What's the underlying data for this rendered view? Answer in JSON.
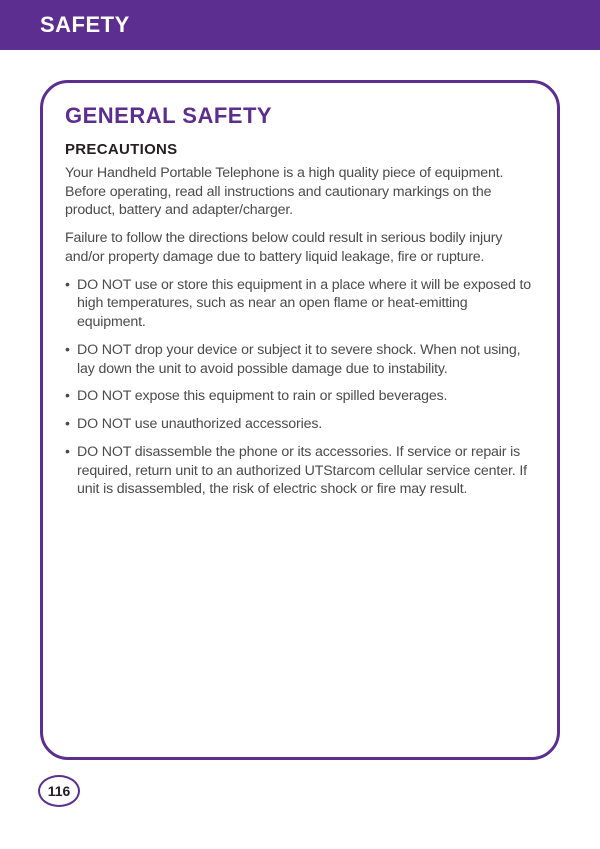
{
  "header": {
    "title": "SAFETY"
  },
  "section": {
    "title": "GENERAL SAFETY",
    "subheading": "PRECAUTIONS",
    "intro1": "Your Handheld Portable Telephone is a high quality piece of equipment. Before operating, read all instructions and cautionary markings on the product, battery and adapter/charger.",
    "intro2": "Failure to follow the directions below could result in serious bodily injury and/or property damage due to battery liquid leakage, fire or rupture.",
    "bullets": [
      "DO NOT use or store this equipment in a place where it will be exposed to high temperatures, such as near an open flame or heat-emitting equipment.",
      "DO NOT drop your device or subject it to severe shock.  When not using, lay down the unit to avoid possible damage due to instability.",
      "DO NOT expose this equipment to rain or spilled beverages.",
      "DO NOT use unauthorized accessories.",
      "DO NOT disassemble the phone or its accessories.  If service or repair is required, return unit to an authorized UTStarcom cellular service center.  If unit is disassembled, the risk of electric shock or fire may result."
    ]
  },
  "page_number": "116",
  "colors": {
    "brand_purple": "#5b2e8f",
    "text_dark": "#231f20",
    "text_body": "#4b4b4b",
    "background": "#ffffff"
  }
}
